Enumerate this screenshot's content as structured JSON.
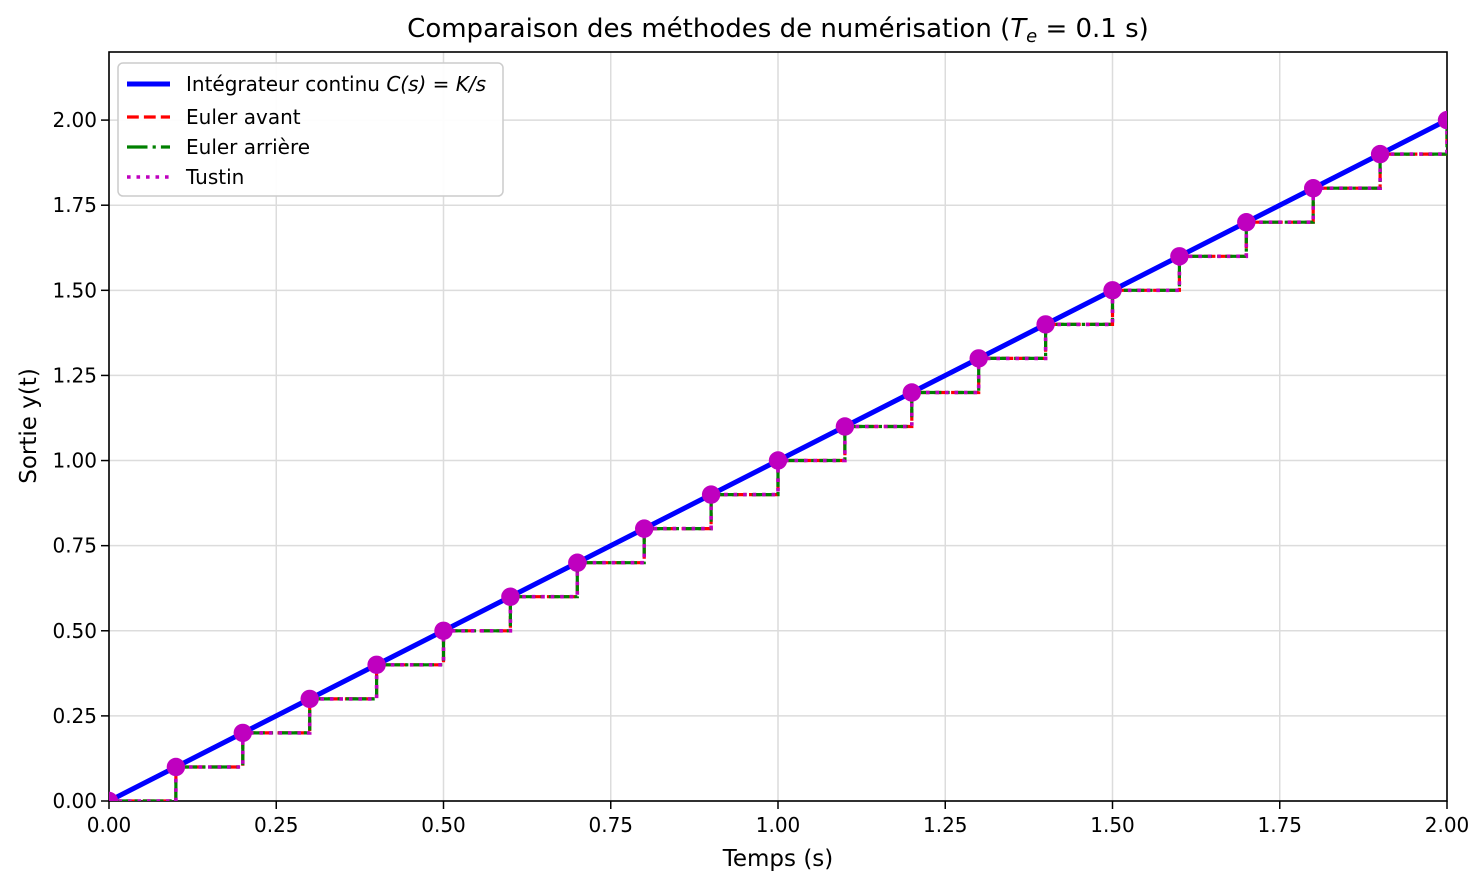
{
  "title": {
    "prefix": "Comparaison des méthodes de numérisation (",
    "var": "T",
    "sub": "e",
    "suffix": " = 0.1 s)"
  },
  "axes": {
    "xlabel": "Temps (s)",
    "ylabel": "Sortie y(t)",
    "xtick_labels": [
      "0.00",
      "0.25",
      "0.50",
      "0.75",
      "1.00",
      "1.25",
      "1.50",
      "1.75",
      "2.00"
    ],
    "ytick_labels": [
      "0.00",
      "0.25",
      "0.50",
      "0.75",
      "1.00",
      "1.25",
      "1.50",
      "1.75",
      "2.00"
    ]
  },
  "legend": {
    "items": [
      {
        "text": "Intégrateur continu ",
        "math": "C(s) = K/s",
        "color": "#0000ff",
        "style": "solid"
      },
      {
        "text": "Euler avant",
        "math": "",
        "color": "#ff0000",
        "style": "dashed"
      },
      {
        "text": "Euler arrière",
        "math": "",
        "color": "#008000",
        "style": "dashdot"
      },
      {
        "text": "Tustin",
        "math": "",
        "color": "#bf00bf",
        "style": "dotted"
      }
    ]
  },
  "chart_data": {
    "type": "line",
    "title": "Comparaison des méthodes de numérisation (Te = 0.1 s)",
    "xlabel": "Temps (s)",
    "ylabel": "Sortie y(t)",
    "xlim": [
      0,
      2
    ],
    "ylim": [
      0,
      2.2
    ],
    "xticks": [
      0,
      0.25,
      0.5,
      0.75,
      1.0,
      1.25,
      1.5,
      1.75,
      2.0
    ],
    "yticks": [
      0,
      0.25,
      0.5,
      0.75,
      1.0,
      1.25,
      1.5,
      1.75,
      2.0
    ],
    "grid": true,
    "legend_position": "upper left",
    "sampling_period_s": 0.1,
    "series": [
      {
        "name": "Intégrateur continu C(s) = K/s",
        "draw": "line",
        "style": "solid",
        "color": "#0000ff",
        "x": [
          0.0,
          2.0
        ],
        "y": [
          0.0,
          2.0
        ]
      },
      {
        "name": "Euler avant",
        "draw": "step-post",
        "style": "dashed",
        "color": "#ff0000",
        "x": [
          0.0,
          0.1,
          0.2,
          0.3,
          0.4,
          0.5,
          0.6,
          0.7,
          0.8,
          0.9,
          1.0,
          1.1,
          1.2,
          1.3,
          1.4,
          1.5,
          1.6,
          1.7,
          1.8,
          1.9,
          2.0
        ],
        "y": [
          0.0,
          0.1,
          0.2,
          0.3,
          0.4,
          0.5,
          0.6,
          0.7,
          0.8,
          0.9,
          1.0,
          1.1,
          1.2,
          1.3,
          1.4,
          1.5,
          1.6,
          1.7,
          1.8,
          1.9,
          2.0
        ]
      },
      {
        "name": "Euler arrière",
        "draw": "step-post",
        "style": "dashdot",
        "color": "#008000",
        "x": [
          0.0,
          0.1,
          0.2,
          0.3,
          0.4,
          0.5,
          0.6,
          0.7,
          0.8,
          0.9,
          1.0,
          1.1,
          1.2,
          1.3,
          1.4,
          1.5,
          1.6,
          1.7,
          1.8,
          1.9,
          2.0
        ],
        "y": [
          0.0,
          0.1,
          0.2,
          0.3,
          0.4,
          0.5,
          0.6,
          0.7,
          0.8,
          0.9,
          1.0,
          1.1,
          1.2,
          1.3,
          1.4,
          1.5,
          1.6,
          1.7,
          1.8,
          1.9,
          2.0
        ]
      },
      {
        "name": "Tustin",
        "draw": "step-post",
        "style": "dotted",
        "color": "#bf00bf",
        "marker": "o",
        "marker_color": "#bf00bf",
        "x": [
          0.0,
          0.1,
          0.2,
          0.3,
          0.4,
          0.5,
          0.6,
          0.7,
          0.8,
          0.9,
          1.0,
          1.1,
          1.2,
          1.3,
          1.4,
          1.5,
          1.6,
          1.7,
          1.8,
          1.9,
          2.0
        ],
        "y": [
          0.0,
          0.1,
          0.2,
          0.3,
          0.4,
          0.5,
          0.6,
          0.7,
          0.8,
          0.9,
          1.0,
          1.1,
          1.2,
          1.3,
          1.4,
          1.5,
          1.6,
          1.7,
          1.8,
          1.9,
          2.0
        ]
      }
    ]
  },
  "style": {
    "grid_color": "#dcdcdc",
    "spine_color": "#000000",
    "legend_border_color": "#cccccc",
    "marker_radius": 9.2
  }
}
